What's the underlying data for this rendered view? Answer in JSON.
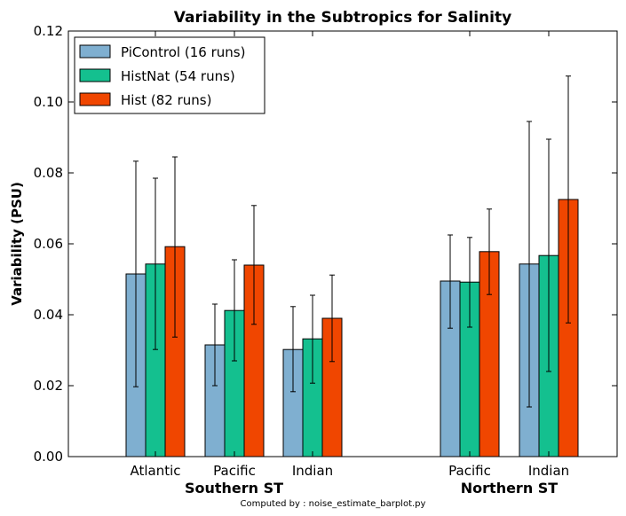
{
  "chart_data": {
    "type": "bar",
    "title": "Variability in the Subtropics for Salinity",
    "xlabel": "",
    "ylabel": "Variability (PSU)",
    "ylim": [
      0,
      0.12
    ],
    "yticks": [
      0.0,
      0.02,
      0.04,
      0.06,
      0.08,
      0.1,
      0.12
    ],
    "ytick_labels": [
      "0.00",
      "0.02",
      "0.04",
      "0.06",
      "0.08",
      "0.10",
      "0.12"
    ],
    "categories": [
      "Atlantic",
      "Pacific",
      "Indian",
      "Pacific",
      "Indian"
    ],
    "groups": [
      {
        "label": "Southern ST",
        "category_indices": [
          0,
          1,
          2
        ]
      },
      {
        "label": "Northern ST",
        "category_indices": [
          3,
          4
        ]
      }
    ],
    "series": [
      {
        "name": "PiControl (16 runs)",
        "color": "#7fafd0",
        "values": [
          0.0515,
          0.0315,
          0.0302,
          0.0495,
          0.0543
        ],
        "err_low": [
          0.0197,
          0.02,
          0.0183,
          0.0362,
          0.014
        ],
        "err_high": [
          0.0833,
          0.043,
          0.0423,
          0.0625,
          0.0945
        ]
      },
      {
        "name": "HistNat (54 runs)",
        "color": "#14c08f",
        "values": [
          0.0543,
          0.0412,
          0.0332,
          0.0492,
          0.0567
        ],
        "err_low": [
          0.0302,
          0.027,
          0.0207,
          0.0365,
          0.024
        ],
        "err_high": [
          0.0785,
          0.0555,
          0.0455,
          0.0618,
          0.0895
        ]
      },
      {
        "name": "Hist (82 runs)",
        "color": "#f04600",
        "values": [
          0.0592,
          0.054,
          0.039,
          0.0578,
          0.0725
        ],
        "err_low": [
          0.0337,
          0.0373,
          0.0268,
          0.0457,
          0.0377
        ],
        "err_high": [
          0.0845,
          0.0708,
          0.0512,
          0.0698,
          0.1073
        ]
      }
    ],
    "legend": "top-left",
    "grid": false
  },
  "footer_note": "Computed by : noise_estimate_barplot.py"
}
